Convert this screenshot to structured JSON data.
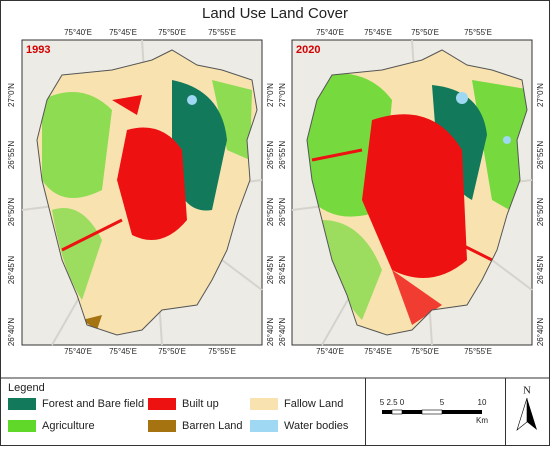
{
  "title": "Land Use Land Cover",
  "panels": [
    {
      "label": "1993"
    },
    {
      "label": "2020"
    }
  ],
  "longitudes": [
    "75°40'E",
    "75°45'E",
    "75°50'E",
    "75°55'E"
  ],
  "latitudes": [
    "27°0'N",
    "26°55'N",
    "26°50'N",
    "26°45'N",
    "26°40'N"
  ],
  "legend": {
    "title": "Legend",
    "items": [
      {
        "label": "Forest and Bare field",
        "color": "#127a5a"
      },
      {
        "label": "Agriculture",
        "color": "#5fd82a"
      },
      {
        "label": "Built up",
        "color": "#ee1111"
      },
      {
        "label": "Barren Land",
        "color": "#a5730f"
      },
      {
        "label": "Fallow Land",
        "color": "#f8e3b0"
      },
      {
        "label": "Water bodies",
        "color": "#9fd8f2"
      }
    ]
  },
  "scale_bar": {
    "labels": [
      "5",
      "2.5",
      "0",
      "5",
      "10"
    ],
    "unit": "Km"
  },
  "north": "N"
}
